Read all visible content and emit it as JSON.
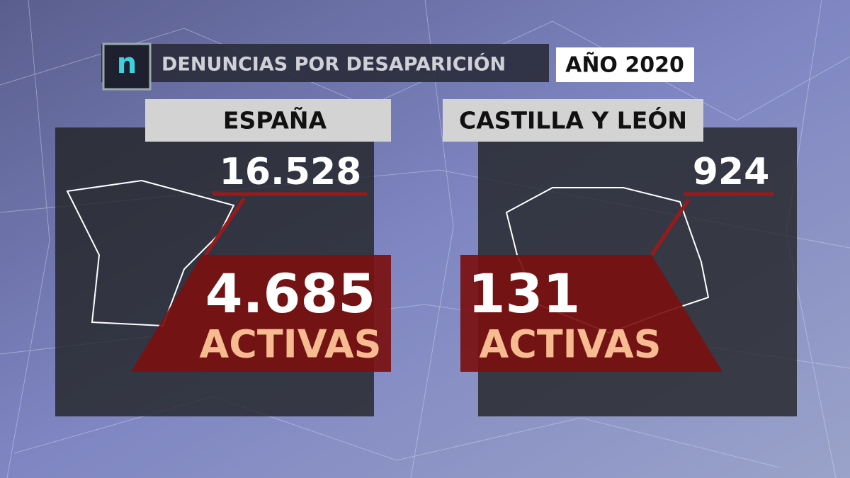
{
  "header": {
    "logo": "n",
    "title": "DENUNCIAS POR DESAPARICIÓN",
    "year": "AÑO 2020"
  },
  "panels": [
    {
      "region": "ESPAÑA",
      "total": "16.528",
      "active": "4.685",
      "active_label": "ACTIVAS"
    },
    {
      "region": "CASTILLA Y LEÓN",
      "total": "924",
      "active": "131",
      "active_label": "ACTIVAS"
    }
  ]
}
